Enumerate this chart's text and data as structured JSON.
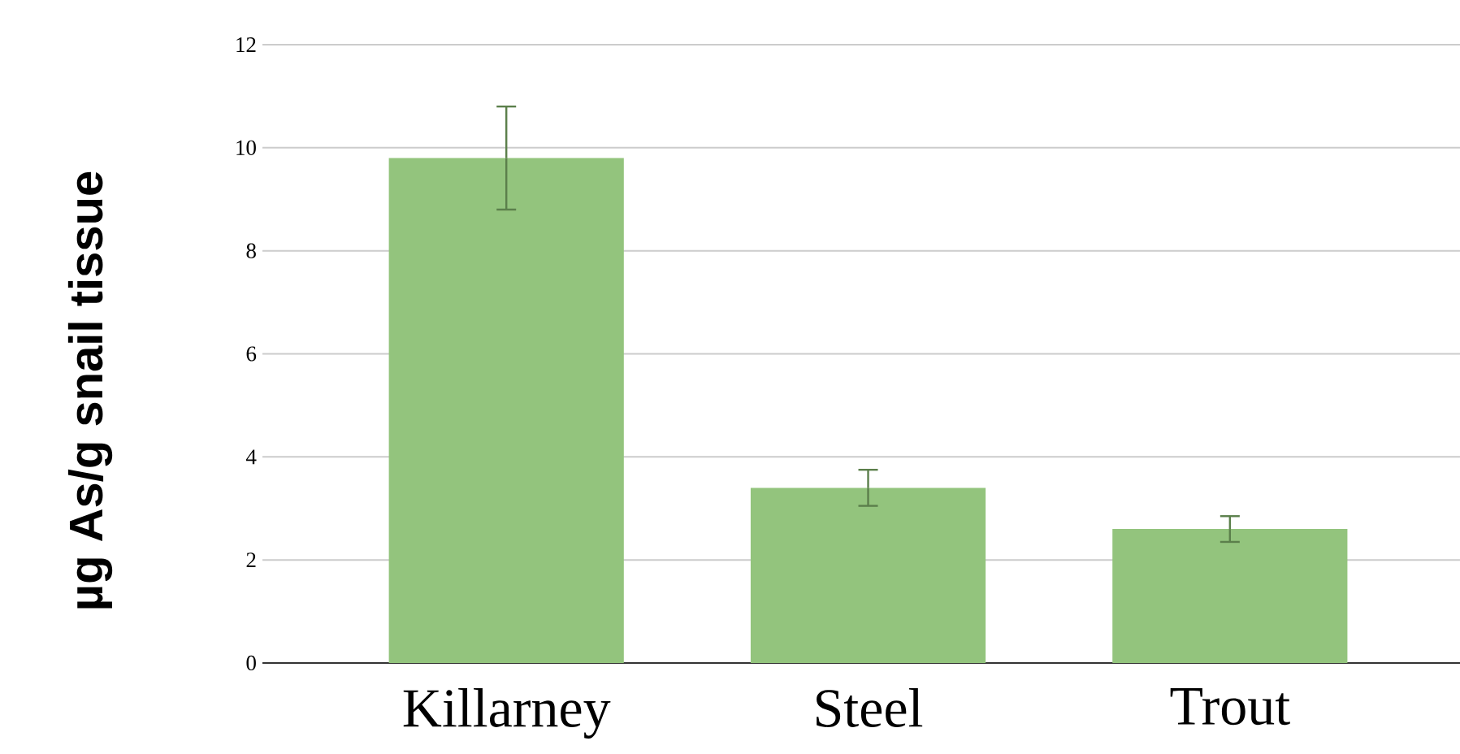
{
  "chart_data": {
    "type": "bar",
    "ylabel": "µg As/g snail tissue",
    "categories": [
      "Killarney",
      "Steel",
      "Trout"
    ],
    "values": [
      9.8,
      3.4,
      2.6
    ],
    "errors": [
      1.0,
      0.35,
      0.25
    ],
    "color": "#93c47d",
    "ylim": [
      0,
      12
    ],
    "yticks": [
      0,
      2,
      4,
      6,
      8,
      10,
      12
    ],
    "grid": "y"
  }
}
